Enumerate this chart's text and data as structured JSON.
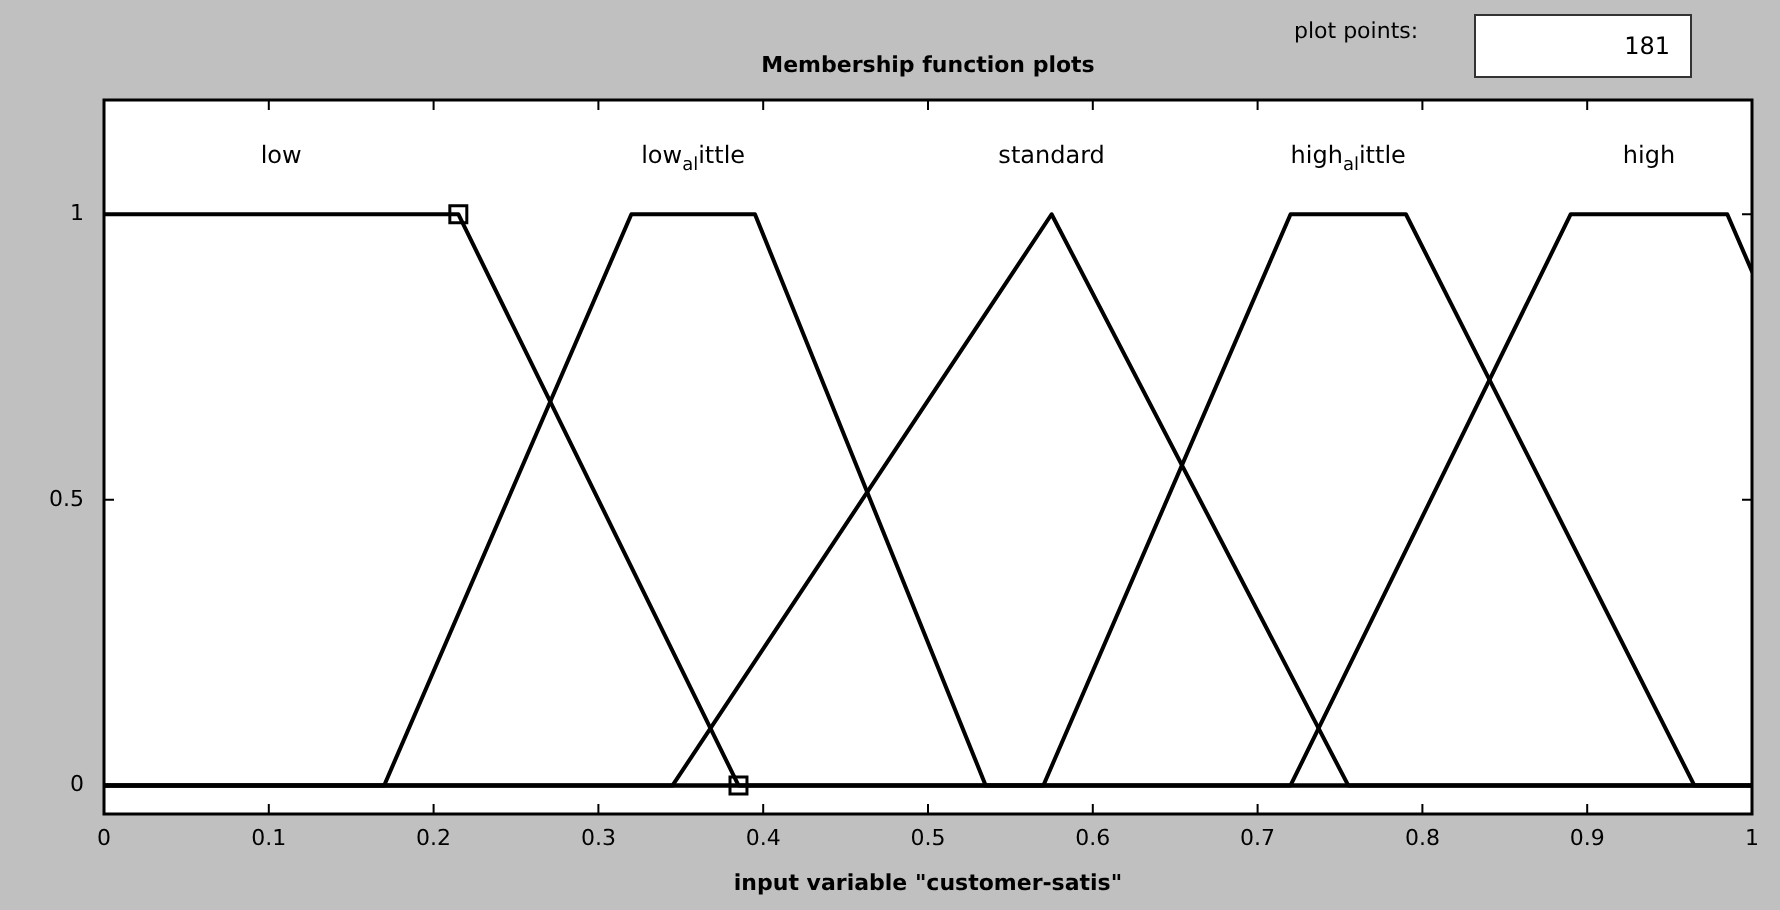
{
  "chart_data": {
    "type": "line",
    "title": "Membership function plots",
    "xlabel": "input variable \"customer-satis\"",
    "annotations": [
      "plot points:",
      "181"
    ],
    "xlim": [
      0,
      1
    ],
    "xticks": [
      0,
      0.1,
      0.2,
      0.3,
      0.4,
      0.5,
      0.6,
      0.7,
      0.8,
      0.9,
      1
    ],
    "ylim": [
      -0.05,
      1.2
    ],
    "yticks": [
      0,
      0.5,
      1
    ],
    "series": [
      {
        "name": "low",
        "color": "#000000",
        "x": [
          0,
          0.215,
          0.385,
          1
        ],
        "values": [
          1,
          1,
          0,
          0
        ]
      },
      {
        "name": "low$_{al}$ittle",
        "color": "#000000",
        "x": [
          0,
          0.17,
          0.32,
          0.395,
          0.535,
          1
        ],
        "values": [
          0,
          0,
          1,
          1,
          0,
          0
        ]
      },
      {
        "name": "standard",
        "color": "#000000",
        "x": [
          0,
          0.345,
          0.575,
          0.755,
          1
        ],
        "values": [
          0,
          0,
          1,
          0,
          0
        ]
      },
      {
        "name": "high$_{al}$ittle",
        "color": "#000000",
        "x": [
          0,
          0.57,
          0.72,
          0.79,
          0.965,
          1
        ],
        "values": [
          0,
          0,
          1,
          1,
          0,
          0
        ]
      },
      {
        "name": "high",
        "color": "#000000",
        "x": [
          0,
          0.72,
          0.89,
          0.985,
          1
        ],
        "values": [
          0,
          0,
          1,
          1,
          0.9
        ]
      },
      {
        "type": "scatter",
        "color": "#000000",
        "marker": "square",
        "x": [
          0.215,
          0.385
        ],
        "values": [
          1,
          0
        ]
      }
    ]
  }
}
